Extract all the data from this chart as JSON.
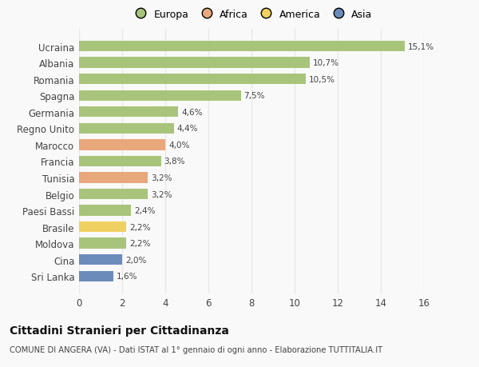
{
  "countries": [
    "Ucraina",
    "Albania",
    "Romania",
    "Spagna",
    "Germania",
    "Regno Unito",
    "Marocco",
    "Francia",
    "Tunisia",
    "Belgio",
    "Paesi Bassi",
    "Brasile",
    "Moldova",
    "Cina",
    "Sri Lanka"
  ],
  "values": [
    15.1,
    10.7,
    10.5,
    7.5,
    4.6,
    4.4,
    4.0,
    3.8,
    3.2,
    3.2,
    2.4,
    2.2,
    2.2,
    2.0,
    1.6
  ],
  "labels": [
    "15,1%",
    "10,7%",
    "10,5%",
    "7,5%",
    "4,6%",
    "4,4%",
    "4,0%",
    "3,8%",
    "3,2%",
    "3,2%",
    "2,4%",
    "2,2%",
    "2,2%",
    "2,0%",
    "1,6%"
  ],
  "categories": [
    "Europa",
    "Europa",
    "Europa",
    "Europa",
    "Europa",
    "Europa",
    "Africa",
    "Europa",
    "Africa",
    "Europa",
    "Europa",
    "America",
    "Europa",
    "Asia",
    "Asia"
  ],
  "colors": {
    "Europa": "#a8c47a",
    "Africa": "#e8a87c",
    "America": "#f0d060",
    "Asia": "#6b8cba"
  },
  "legend_labels": [
    "Europa",
    "Africa",
    "America",
    "Asia"
  ],
  "legend_colors": [
    "#a8c47a",
    "#e8a87c",
    "#f0d060",
    "#6b8cba"
  ],
  "title": "Cittadini Stranieri per Cittadinanza",
  "subtitle": "COMUNE DI ANGERA (VA) - Dati ISTAT al 1° gennaio di ogni anno - Elaborazione TUTTITALIA.IT",
  "xlim": [
    0,
    16
  ],
  "xticks": [
    0,
    2,
    4,
    6,
    8,
    10,
    12,
    14,
    16
  ],
  "background_color": "#f9f9f9",
  "grid_color": "#e8e8e8",
  "bar_height": 0.65
}
